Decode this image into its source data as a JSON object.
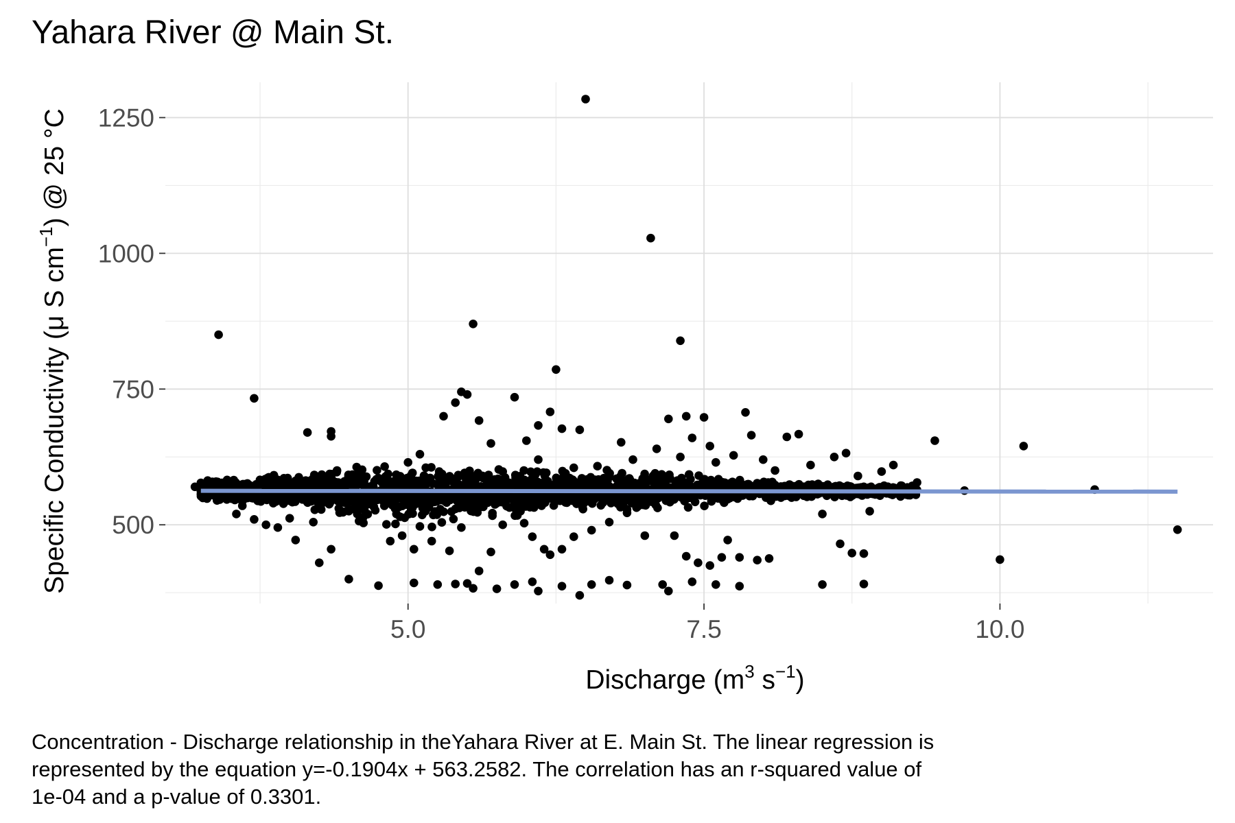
{
  "chart_data": {
    "type": "scatter",
    "title": "Yahara River @ Main St.",
    "xlabel": {
      "base": "Discharge (m",
      "sup1": "3",
      "mid": " s",
      "sup2": "−1",
      "end": ")"
    },
    "ylabel": {
      "base": "Specific Conductivity (μ S cm",
      "sup": "−1",
      "end": ") @ 25 °C"
    },
    "xlim": [
      2.95,
      11.8
    ],
    "ylim": [
      355,
      1315
    ],
    "xticks": [
      5.0,
      7.5,
      10.0
    ],
    "xtick_labels": [
      "5.0",
      "7.5",
      "10.0"
    ],
    "yticks": [
      500,
      750,
      1000,
      1250
    ],
    "ytick_labels": [
      "500",
      "750",
      "1000",
      "1250"
    ],
    "grid": true,
    "point_color": "#000000",
    "line_color": "#7b96d0",
    "regression": {
      "slope": -0.1904,
      "intercept": 563.2582,
      "x_range": [
        3.25,
        11.5
      ]
    },
    "points": [
      [
        6.5,
        1284
      ],
      [
        7.05,
        1028
      ],
      [
        3.4,
        850
      ],
      [
        5.55,
        870
      ],
      [
        7.3,
        839
      ],
      [
        6.25,
        786
      ],
      [
        3.7,
        733
      ],
      [
        5.9,
        735
      ],
      [
        5.45,
        745
      ],
      [
        5.5,
        740
      ],
      [
        5.4,
        725
      ],
      [
        5.3,
        700
      ],
      [
        5.6,
        692
      ],
      [
        6.2,
        708
      ],
      [
        6.1,
        683
      ],
      [
        7.2,
        695
      ],
      [
        7.35,
        700
      ],
      [
        7.5,
        698
      ],
      [
        7.85,
        707
      ],
      [
        7.9,
        665
      ],
      [
        8.2,
        662
      ],
      [
        8.3,
        667
      ],
      [
        9.45,
        655
      ],
      [
        10.2,
        645
      ],
      [
        4.15,
        670
      ],
      [
        4.35,
        672
      ],
      [
        4.35,
        663
      ],
      [
        6.3,
        677
      ],
      [
        6.45,
        675
      ],
      [
        6.8,
        652
      ],
      [
        5.0,
        615
      ],
      [
        5.1,
        630
      ],
      [
        5.7,
        650
      ],
      [
        6.0,
        655
      ],
      [
        7.1,
        640
      ],
      [
        7.4,
        660
      ],
      [
        7.55,
        645
      ],
      [
        3.55,
        520
      ],
      [
        3.6,
        535
      ],
      [
        3.7,
        510
      ],
      [
        3.8,
        500
      ],
      [
        3.9,
        495
      ],
      [
        4.0,
        512
      ],
      [
        4.05,
        472
      ],
      [
        4.2,
        505
      ],
      [
        4.35,
        455
      ],
      [
        4.45,
        523
      ],
      [
        4.6,
        510
      ],
      [
        4.8,
        535
      ],
      [
        4.85,
        470
      ],
      [
        4.95,
        480
      ],
      [
        5.05,
        455
      ],
      [
        5.1,
        497
      ],
      [
        5.2,
        470
      ],
      [
        5.35,
        452
      ],
      [
        5.45,
        495
      ],
      [
        5.6,
        415
      ],
      [
        5.7,
        450
      ],
      [
        5.8,
        500
      ],
      [
        5.95,
        525
      ],
      [
        6.05,
        478
      ],
      [
        6.15,
        455
      ],
      [
        6.2,
        445
      ],
      [
        6.3,
        455
      ],
      [
        6.4,
        478
      ],
      [
        6.55,
        490
      ],
      [
        6.7,
        505
      ],
      [
        6.85,
        522
      ],
      [
        7.0,
        480
      ],
      [
        7.25,
        480
      ],
      [
        7.35,
        442
      ],
      [
        7.45,
        430
      ],
      [
        7.55,
        425
      ],
      [
        7.65,
        440
      ],
      [
        7.7,
        472
      ],
      [
        7.8,
        440
      ],
      [
        7.95,
        435
      ],
      [
        8.05,
        438
      ],
      [
        8.5,
        520
      ],
      [
        8.65,
        465
      ],
      [
        8.75,
        448
      ],
      [
        8.85,
        447
      ],
      [
        8.9,
        525
      ],
      [
        4.25,
        430
      ],
      [
        4.5,
        400
      ],
      [
        4.75,
        388
      ],
      [
        5.05,
        393
      ],
      [
        5.25,
        390
      ],
      [
        5.4,
        391
      ],
      [
        5.5,
        392
      ],
      [
        5.55,
        383
      ],
      [
        5.75,
        382
      ],
      [
        5.9,
        390
      ],
      [
        6.05,
        395
      ],
      [
        6.1,
        378
      ],
      [
        6.3,
        387
      ],
      [
        6.45,
        370
      ],
      [
        6.55,
        390
      ],
      [
        6.7,
        398
      ],
      [
        6.85,
        389
      ],
      [
        7.15,
        390
      ],
      [
        7.2,
        378
      ],
      [
        7.4,
        395
      ],
      [
        7.6,
        390
      ],
      [
        7.8,
        387
      ],
      [
        8.5,
        390
      ],
      [
        8.85,
        391
      ],
      [
        10.0,
        436
      ],
      [
        11.5,
        491
      ],
      [
        9.7,
        563
      ],
      [
        10.8,
        565
      ],
      [
        9.3,
        578
      ],
      [
        9.1,
        610
      ],
      [
        9.0,
        598
      ],
      [
        8.8,
        590
      ],
      [
        8.7,
        632
      ],
      [
        8.6,
        625
      ],
      [
        8.4,
        610
      ],
      [
        8.1,
        600
      ],
      [
        8.0,
        620
      ],
      [
        7.75,
        628
      ],
      [
        7.6,
        615
      ],
      [
        7.3,
        625
      ],
      [
        6.9,
        620
      ],
      [
        6.6,
        608
      ],
      [
        6.4,
        605
      ],
      [
        6.1,
        620
      ],
      [
        5.8,
        598
      ],
      [
        4.6,
        590
      ],
      [
        4.4,
        600
      ],
      [
        4.1,
        580
      ],
      [
        3.85,
        578
      ],
      [
        3.55,
        575
      ],
      [
        3.3,
        568
      ],
      [
        3.2,
        570
      ]
    ]
  },
  "caption": {
    "line1": "Concentration - Discharge relationship in theYahara River at E. Main St. The linear regression is",
    "line2": "represented by the equation y=-0.1904x + 563.2582. The correlation has an r-squared value of",
    "line3": "1e-04 and a p-value of 0.3301."
  }
}
